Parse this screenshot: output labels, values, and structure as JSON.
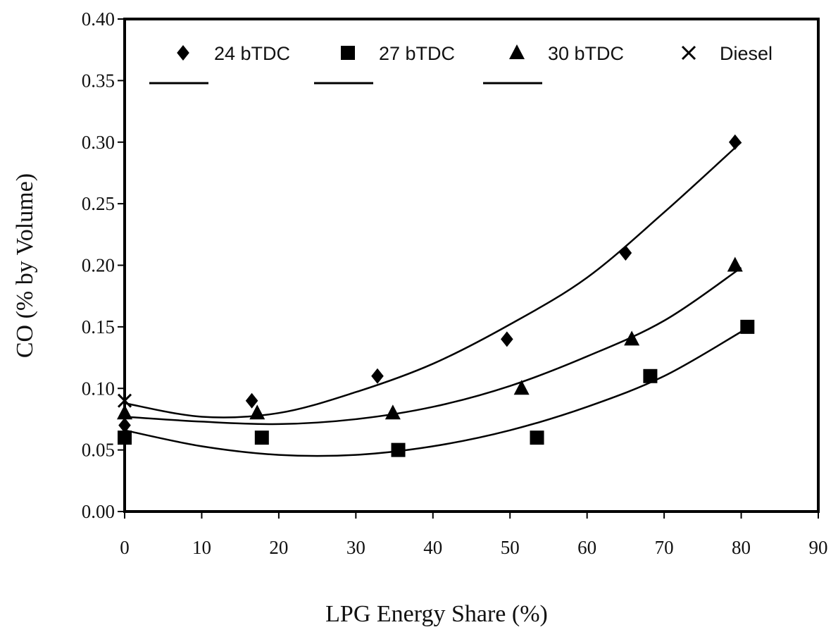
{
  "chart_data": {
    "type": "scatter",
    "xlabel": "LPG Energy Share (%)",
    "ylabel": "CO (% by Volume)",
    "xlim": [
      0,
      90
    ],
    "ylim": [
      0,
      0.4
    ],
    "x_ticks": [
      "0",
      "10",
      "20",
      "30",
      "40",
      "50",
      "60",
      "70",
      "80",
      "90"
    ],
    "y_ticks": [
      "0.00",
      "0.05",
      "0.10",
      "0.15",
      "0.20",
      "0.25",
      "0.30",
      "0.35",
      "0.40"
    ],
    "grid": false,
    "legend_position": "top",
    "series": [
      {
        "name": "24 bTDC",
        "marker": "diamond",
        "x": [
          0,
          16.5,
          32.8,
          49.6,
          65,
          79.2
        ],
        "y": [
          0.07,
          0.09,
          0.11,
          0.14,
          0.21,
          0.3
        ],
        "trendline": {
          "type": "quadratic",
          "x": [
            0,
            10,
            20,
            30,
            40,
            50,
            60,
            70,
            80
          ],
          "y": [
            0.088,
            0.077,
            0.08,
            0.097,
            0.12,
            0.152,
            0.19,
            0.243,
            0.3
          ]
        }
      },
      {
        "name": "27 bTDC",
        "marker": "square",
        "x": [
          0,
          17.8,
          35.5,
          53.5,
          68.2,
          80.8
        ],
        "y": [
          0.06,
          0.06,
          0.05,
          0.06,
          0.11,
          0.15
        ],
        "trendline": {
          "type": "quadratic",
          "x": [
            0,
            10,
            20,
            30,
            40,
            50,
            60,
            70,
            80
          ],
          "y": [
            0.066,
            0.053,
            0.046,
            0.046,
            0.053,
            0.066,
            0.085,
            0.11,
            0.146
          ]
        }
      },
      {
        "name": "30 bTDC",
        "marker": "triangle",
        "x": [
          0,
          17.2,
          34.8,
          51.5,
          65.8,
          79.2
        ],
        "y": [
          0.08,
          0.08,
          0.08,
          0.1,
          0.14,
          0.2
        ],
        "trendline": {
          "type": "quadratic",
          "x": [
            0,
            10,
            20,
            30,
            40,
            50,
            60,
            70,
            80
          ],
          "y": [
            0.077,
            0.073,
            0.071,
            0.075,
            0.085,
            0.102,
            0.126,
            0.155,
            0.198
          ]
        }
      },
      {
        "name": "Diesel",
        "marker": "x",
        "x": [
          0
        ],
        "y": [
          0.09
        ]
      }
    ]
  },
  "colors": {
    "ink": "#000000",
    "background": "#ffffff"
  }
}
